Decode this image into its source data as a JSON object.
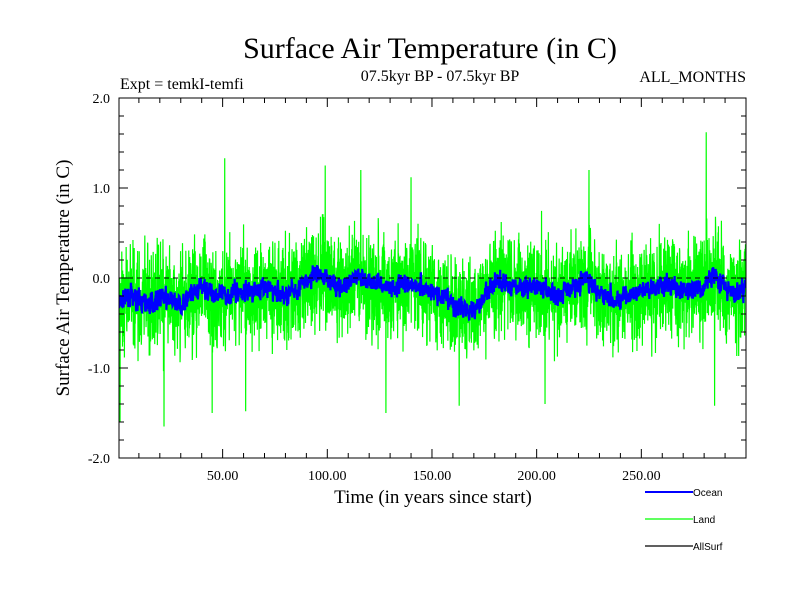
{
  "chart_data": {
    "type": "line",
    "title": "Surface Air Temperature (in C)",
    "subtitle": "07.5kyr BP - 07.5kyr BP",
    "left_note": "Expt = temkI-temfi",
    "right_note": "ALL_MONTHS",
    "xlabel": "Time (in years since start)",
    "ylabel": "Surface Air Temperature (in C)",
    "xlim": [
      0.5,
      300
    ],
    "ylim": [
      -2.0,
      2.0
    ],
    "x_ticks": [
      50,
      100,
      150,
      200,
      250
    ],
    "x_tick_labels": [
      "50.00",
      "100.00",
      "150.00",
      "200.00",
      "250.00"
    ],
    "y_ticks": [
      -2.0,
      -1.0,
      0.0,
      1.0,
      2.0
    ],
    "y_tick_labels": [
      "-2.0",
      "-1.0",
      "0.0",
      "1.0",
      "2.0"
    ],
    "reference_line": 0.0,
    "points_per_year": 12,
    "legend": [
      "Ocean",
      "Land",
      "AllSurf"
    ],
    "series": [
      {
        "name": "Ocean",
        "color": "#0000ff",
        "noise_amplitude": 0.09,
        "anchor_years": [
          0,
          5,
          10,
          15,
          20,
          30,
          40,
          50,
          60,
          70,
          80,
          90,
          95,
          100,
          105,
          110,
          115,
          120,
          130,
          140,
          150,
          160,
          170,
          175,
          180,
          190,
          200,
          210,
          220,
          225,
          230,
          240,
          250,
          260,
          270,
          280,
          285,
          290,
          295,
          300
        ],
        "anchor_values": [
          -0.3,
          -0.2,
          -0.25,
          -0.3,
          -0.2,
          -0.3,
          -0.1,
          -0.2,
          -0.15,
          -0.1,
          -0.2,
          -0.05,
          0.05,
          0.0,
          -0.1,
          -0.1,
          0.05,
          -0.05,
          -0.1,
          -0.05,
          -0.15,
          -0.3,
          -0.35,
          -0.2,
          -0.05,
          -0.1,
          -0.1,
          -0.2,
          -0.05,
          0.0,
          -0.15,
          -0.25,
          -0.15,
          -0.05,
          -0.15,
          -0.1,
          0.05,
          -0.1,
          -0.2,
          -0.1
        ]
      },
      {
        "name": "Land",
        "color": "#00ff00",
        "noise_amplitude": 0.55,
        "anchor_years": [
          0,
          5,
          10,
          15,
          20,
          30,
          40,
          50,
          60,
          70,
          80,
          90,
          95,
          100,
          105,
          110,
          115,
          120,
          130,
          140,
          150,
          160,
          170,
          175,
          180,
          190,
          200,
          210,
          220,
          225,
          230,
          240,
          250,
          260,
          270,
          280,
          285,
          290,
          295,
          300
        ],
        "anchor_values": [
          -0.3,
          -0.2,
          -0.25,
          -0.3,
          -0.2,
          -0.3,
          -0.1,
          -0.2,
          -0.15,
          -0.1,
          -0.2,
          -0.05,
          0.05,
          0.0,
          -0.1,
          -0.1,
          0.05,
          -0.05,
          -0.1,
          -0.05,
          -0.15,
          -0.3,
          -0.35,
          -0.2,
          -0.05,
          -0.1,
          -0.1,
          -0.2,
          -0.05,
          0.0,
          -0.15,
          -0.25,
          -0.15,
          -0.05,
          -0.15,
          -0.1,
          0.05,
          -0.1,
          -0.2,
          -0.1
        ],
        "peaks": [
          {
            "x": 51,
            "y": 1.33
          },
          {
            "x": 99,
            "y": 1.25
          },
          {
            "x": 116,
            "y": 1.2
          },
          {
            "x": 140,
            "y": 1.12
          },
          {
            "x": 225,
            "y": 1.2
          },
          {
            "x": 281,
            "y": 1.62
          },
          {
            "x": 22,
            "y": -1.65
          },
          {
            "x": 61,
            "y": -1.48
          },
          {
            "x": 45,
            "y": -1.5
          },
          {
            "x": 128,
            "y": -1.5
          },
          {
            "x": 163,
            "y": -1.42
          },
          {
            "x": 204,
            "y": -1.4
          },
          {
            "x": 285,
            "y": -1.42
          },
          {
            "x": 1,
            "y": -1.6
          }
        ]
      },
      {
        "name": "AllSurf",
        "color": "#000000",
        "noise_amplitude": 0.0,
        "anchor_years": [
          0,
          300
        ],
        "anchor_values": [
          0.0,
          0.0
        ]
      }
    ]
  }
}
